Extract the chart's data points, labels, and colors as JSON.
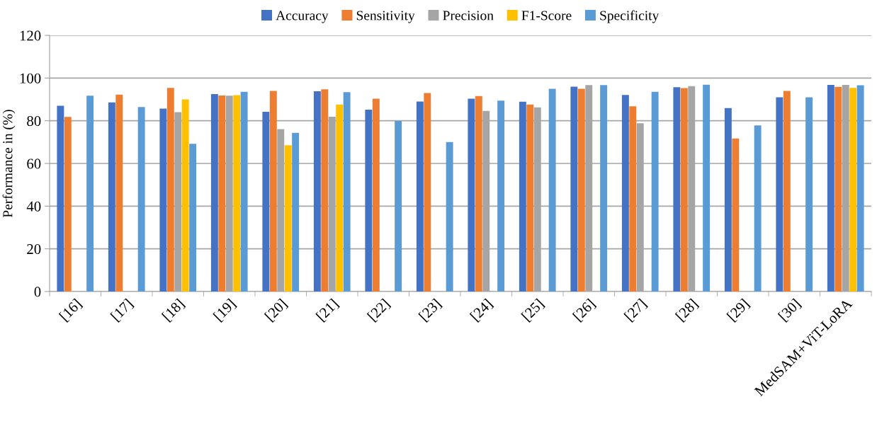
{
  "chart_data": {
    "type": "bar",
    "ylabel": "Performance in (%)",
    "categories": [
      "[16]",
      "[17]",
      "[18]",
      "[19]",
      "[20]",
      "[21]",
      "[22]",
      "[23]",
      "[24]",
      "[25]",
      "[26]",
      "[27]",
      "[28]",
      "[29]",
      "[30]",
      "MedSAM+ViT-LoRA"
    ],
    "series": [
      {
        "name": "Accuracy",
        "color": "#4472c4",
        "values": [
          87,
          88.6,
          85.7,
          92.5,
          84.2,
          93.8,
          85.2,
          89,
          90.3,
          88.9,
          96,
          92.1,
          95.7,
          85.9,
          91,
          96.8
        ]
      },
      {
        "name": "Sensitivity",
        "color": "#ed7d31",
        "values": [
          81.8,
          92.2,
          95.4,
          91.8,
          94,
          94.7,
          90.3,
          93,
          91.6,
          87.6,
          95,
          86.8,
          95.3,
          71.7,
          94,
          95.9
        ]
      },
      {
        "name": "Precision",
        "color": "#a5a5a5",
        "values": [
          null,
          null,
          84,
          91.7,
          76.1,
          81.9,
          null,
          null,
          84.6,
          86.3,
          96.7,
          78.8,
          96.2,
          null,
          null,
          96.8
        ]
      },
      {
        "name": "F1-Score",
        "color": "#ffc000",
        "values": [
          null,
          null,
          90,
          92,
          68.5,
          87.6,
          null,
          null,
          null,
          null,
          null,
          null,
          null,
          null,
          null,
          95.4
        ]
      },
      {
        "name": "Specificity",
        "color": "#5b9bd5",
        "values": [
          91.7,
          86.4,
          69.2,
          93.6,
          74.3,
          93.4,
          79.9,
          70,
          89.4,
          95,
          96.7,
          93.6,
          96.9,
          77.8,
          91,
          96.6
        ]
      }
    ],
    "ylim": [
      0,
      120
    ],
    "yticks": [
      0,
      20,
      40,
      60,
      80,
      100,
      120
    ],
    "grid": "y",
    "legend": "top"
  }
}
